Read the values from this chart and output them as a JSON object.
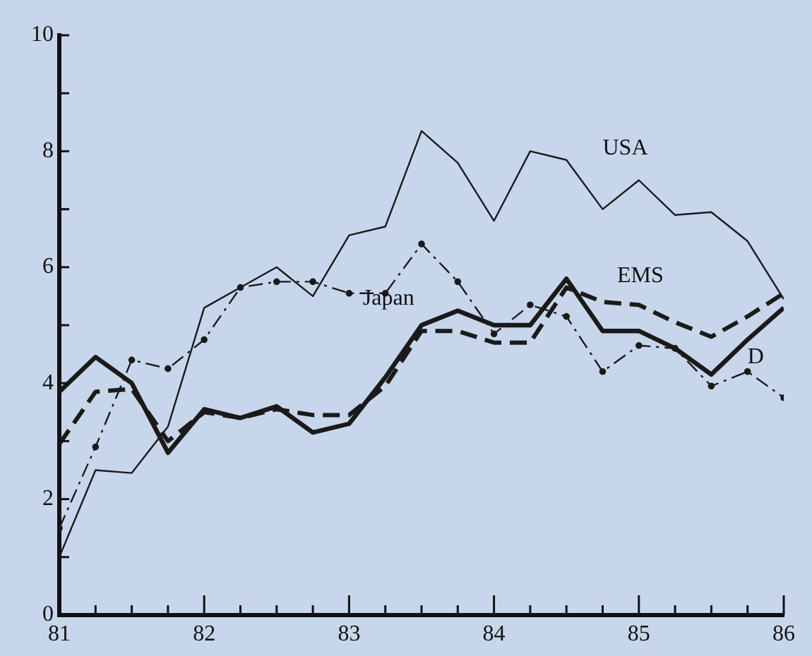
{
  "chart_data": {
    "type": "line",
    "xlim": [
      81,
      86
    ],
    "xticks": [
      81,
      {
        "value": 81.25,
        "label": null
      },
      {
        "value": 81.5,
        "label": null
      },
      {
        "value": 81.75,
        "label": null
      },
      82,
      {
        "value": 82.25,
        "label": null
      },
      {
        "value": 82.5,
        "label": null
      },
      {
        "value": 82.75,
        "label": null
      },
      83,
      {
        "value": 83.25,
        "label": null
      },
      {
        "value": 83.5,
        "label": null
      },
      {
        "value": 83.75,
        "label": null
      },
      84,
      {
        "value": 84.25,
        "label": null
      },
      {
        "value": 84.5,
        "label": null
      },
      {
        "value": 84.75,
        "label": null
      },
      85,
      {
        "value": 85.25,
        "label": null
      },
      {
        "value": 85.5,
        "label": null
      },
      {
        "value": 85.75,
        "label": null
      },
      86
    ],
    "ylim": [
      0,
      10
    ],
    "yticks": [
      0,
      {
        "value": 1,
        "label": null
      },
      2,
      {
        "value": 3,
        "label": null
      },
      4,
      {
        "value": 5,
        "label": null
      },
      6,
      {
        "value": 7,
        "label": null
      },
      8,
      {
        "value": 9,
        "label": null
      },
      10
    ],
    "x": [
      81,
      81.25,
      81.5,
      81.75,
      82,
      82.25,
      82.5,
      82.75,
      83,
      83.25,
      83.5,
      83.75,
      84,
      84.25,
      84.5,
      84.75,
      85,
      85.25,
      85.5,
      85.75,
      86
    ],
    "series": [
      {
        "name": "USA",
        "color": "#1a1a1a",
        "line_style": "solid",
        "marker": "none",
        "values": [
          1.0,
          2.5,
          2.45,
          3.25,
          5.3,
          5.65,
          6.0,
          5.5,
          6.55,
          6.7,
          8.35,
          7.8,
          6.8,
          8.0,
          7.85,
          7.0,
          7.5,
          6.9,
          6.95,
          6.45,
          5.45
        ]
      },
      {
        "name": "Japan",
        "color": "#1a1a1a",
        "line_style": "dashed",
        "marker": "circle",
        "values": [
          1.5,
          2.9,
          4.4,
          4.25,
          4.75,
          5.65,
          5.75,
          5.75,
          5.55,
          5.55,
          6.4,
          5.75,
          4.85,
          5.35,
          5.15,
          4.2,
          4.65,
          4.6,
          3.95,
          4.2,
          3.75
        ]
      },
      {
        "name": "EMS",
        "color": "#1a1a1a",
        "line_style": "dashed",
        "marker": "none",
        "values": [
          2.95,
          3.85,
          3.9,
          3.0,
          3.5,
          3.4,
          3.55,
          3.45,
          3.45,
          3.95,
          4.9,
          4.9,
          4.7,
          4.7,
          5.65,
          5.4,
          5.35,
          5.05,
          4.8,
          5.15,
          5.55
        ]
      },
      {
        "name": "D",
        "color": "#1a1a1a",
        "line_style": "solid",
        "marker": "none",
        "values": [
          3.85,
          4.45,
          4.0,
          2.8,
          3.55,
          3.4,
          3.6,
          3.15,
          3.3,
          4.1,
          5.0,
          5.25,
          5.0,
          5.0,
          5.8,
          4.9,
          4.9,
          4.6,
          4.15,
          4.75,
          5.3
        ]
      }
    ],
    "grid": false,
    "legend": false
  }
}
